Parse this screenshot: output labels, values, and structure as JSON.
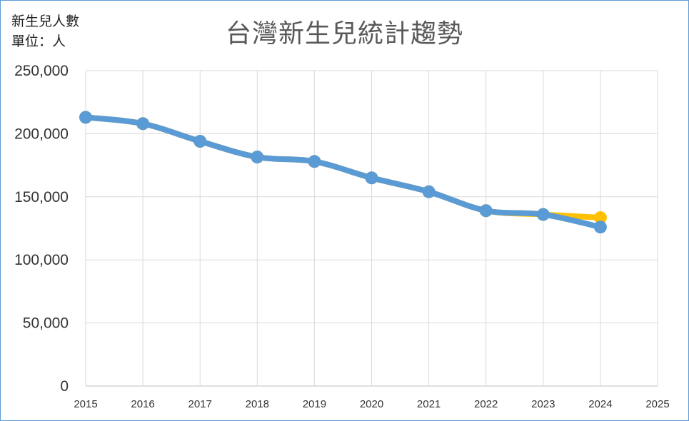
{
  "unit_label": {
    "line1": "新生兒人數",
    "line2": "單位：人"
  },
  "chart_data": {
    "type": "line",
    "title": "台灣新生兒統計趨勢",
    "xlabel": "",
    "ylabel": "",
    "x": [
      2015,
      2016,
      2017,
      2018,
      2019,
      2020,
      2021,
      2022,
      2023,
      2024
    ],
    "xlim": [
      2015,
      2025
    ],
    "ylim": [
      0,
      250000
    ],
    "yticks": [
      0,
      50000,
      100000,
      150000,
      200000,
      250000
    ],
    "ytick_labels": [
      "0",
      "50,000",
      "100,000",
      "150,000",
      "200,000",
      "250,000"
    ],
    "xtick_labels": [
      "2015",
      "2016",
      "2017",
      "2018",
      "2019",
      "2020",
      "2021",
      "2022",
      "2023",
      "2024",
      "2025"
    ],
    "grid": true,
    "legend": "none",
    "series": [
      {
        "color": "#ffc000",
        "values": [
          213000,
          208000,
          194000,
          181500,
          178000,
          165000,
          154000,
          139000,
          136000,
          133500
        ]
      },
      {
        "color": "#5b9bd5",
        "values": [
          213000,
          208000,
          194000,
          181500,
          178000,
          165000,
          154000,
          139000,
          136000,
          126000
        ]
      }
    ]
  }
}
